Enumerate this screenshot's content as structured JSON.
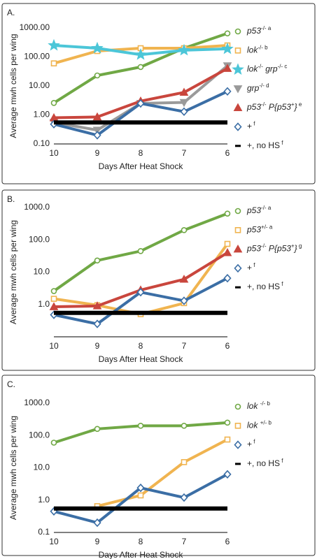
{
  "chart_data": [
    {
      "type": "line",
      "panel": "A.",
      "log_scale": true,
      "ylabel": "Average mwh cells per wing",
      "xlabel": "Days After Heat Shock",
      "categories": [
        "10",
        "9",
        "8",
        "7",
        "6"
      ],
      "ylim": [
        0.1,
        1000
      ],
      "yticks": [
        {
          "value": 1000,
          "label": "1000.00"
        },
        {
          "value": 100,
          "label": "100.00"
        },
        {
          "value": 10,
          "label": "10.00"
        },
        {
          "value": 1,
          "label": "1.00"
        },
        {
          "value": 0.1,
          "label": "0.10"
        }
      ],
      "series": [
        {
          "label": [
            {
              "text": "p53",
              "style": "italic"
            },
            {
              "text": "-/-",
              "style": "sup"
            },
            {
              "text": " a",
              "style": "sup"
            }
          ],
          "color": "#70a845",
          "marker": "circle",
          "values": [
            2.6,
            23,
            45,
            200,
            650
          ]
        },
        {
          "label": [
            {
              "text": "lok",
              "style": "italic"
            },
            {
              "text": "-/-",
              "style": "sup"
            },
            {
              "text": " b",
              "style": "sup"
            }
          ],
          "color": "#f0b450",
          "marker": "square",
          "values": [
            60,
            160,
            200,
            200,
            250
          ]
        },
        {
          "label": [
            {
              "text": "lok",
              "style": "italic"
            },
            {
              "text": "-/-",
              "style": "sup"
            },
            {
              "text": " grp",
              "style": "italic"
            },
            {
              "text": "-/-",
              "style": "sup"
            },
            {
              "text": " c",
              "style": "sup"
            }
          ],
          "color": "#4cc6d8",
          "marker": "star",
          "values": [
            250,
            200,
            120,
            170,
            190
          ]
        },
        {
          "label": [
            {
              "text": "grp",
              "style": "italic"
            },
            {
              "text": "-/-",
              "style": "sup"
            },
            {
              "text": " d",
              "style": "sup"
            }
          ],
          "color": "#9a9a9a",
          "marker": "triangle-down",
          "values": [
            0.55,
            0.3,
            2.5,
            2.7,
            50
          ]
        },
        {
          "label": [
            {
              "text": "p53",
              "style": "italic"
            },
            {
              "text": "-/-",
              "style": "sup"
            },
            {
              "text": " P{p53",
              "style": "italic"
            },
            {
              "text": "+",
              "style": "sup"
            },
            {
              "text": "}",
              "style": "italic"
            },
            {
              "text": " e",
              "style": "sup"
            }
          ],
          "color": "#c9463d",
          "marker": "triangle",
          "values": [
            0.8,
            0.85,
            3,
            6,
            40
          ]
        },
        {
          "label": [
            {
              "text": "+",
              "style": "plain"
            },
            {
              "text": " f",
              "style": "sup"
            }
          ],
          "color": "#3b6ea5",
          "marker": "diamond",
          "values": [
            0.48,
            0.2,
            2.5,
            1.3,
            6.5
          ]
        },
        {
          "label": [
            {
              "text": "+, no HS",
              "style": "plain"
            },
            {
              "text": " f",
              "style": "sup"
            }
          ],
          "color": "#000000",
          "marker": "none",
          "values": [
            0.55,
            0.55,
            0.55,
            0.55,
            0.55
          ]
        }
      ]
    },
    {
      "type": "line",
      "panel": "B.",
      "log_scale": true,
      "ylabel": "Average mwh cells per wing",
      "xlabel": "Days After Heat Shock",
      "categories": [
        "10",
        "9",
        "8",
        "7",
        "6"
      ],
      "ylim": [
        0.1,
        1000
      ],
      "yticks": [
        {
          "value": 1000,
          "label": "1000.0"
        },
        {
          "value": 100,
          "label": "100.0"
        },
        {
          "value": 10,
          "label": "10.0"
        },
        {
          "value": 1,
          "label": "1.0"
        }
      ],
      "series": [
        {
          "label": [
            {
              "text": "p53",
              "style": "italic"
            },
            {
              "text": "-/-",
              "style": "sup"
            },
            {
              "text": " a",
              "style": "sup"
            }
          ],
          "color": "#70a845",
          "marker": "circle",
          "values": [
            2.6,
            23,
            45,
            200,
            650
          ]
        },
        {
          "label": [
            {
              "text": "p53",
              "style": "italic"
            },
            {
              "text": "+/-",
              "style": "sup"
            },
            {
              "text": " a",
              "style": "sup"
            }
          ],
          "color": "#f0b450",
          "marker": "square",
          "values": [
            1.5,
            0.95,
            0.5,
            1.1,
            75
          ]
        },
        {
          "label": [
            {
              "text": "p53",
              "style": "italic"
            },
            {
              "text": "-/-",
              "style": "sup"
            },
            {
              "text": " P{p53",
              "style": "italic"
            },
            {
              "text": "+",
              "style": "sup"
            },
            {
              "text": "}",
              "style": "italic"
            },
            {
              "text": " g",
              "style": "sup"
            }
          ],
          "color": "#c9463d",
          "marker": "triangle",
          "values": [
            0.85,
            0.9,
            2.8,
            6,
            40
          ]
        },
        {
          "label": [
            {
              "text": "+",
              "style": "plain"
            },
            {
              "text": " f",
              "style": "sup"
            }
          ],
          "color": "#3b6ea5",
          "marker": "diamond",
          "values": [
            0.48,
            0.25,
            2.4,
            1.3,
            6.5
          ]
        },
        {
          "label": [
            {
              "text": "+, no HS",
              "style": "plain"
            },
            {
              "text": " f",
              "style": "sup"
            }
          ],
          "color": "#000000",
          "marker": "none",
          "values": [
            0.55,
            0.55,
            0.55,
            0.55,
            0.55
          ]
        }
      ]
    },
    {
      "type": "line",
      "panel": "C.",
      "log_scale": true,
      "ylabel": "Average mwh cells per wing",
      "xlabel": "Days After Heat Shock",
      "categories": [
        "10",
        "9",
        "8",
        "7",
        "6"
      ],
      "ylim": [
        0.1,
        1000
      ],
      "yticks": [
        {
          "value": 1000,
          "label": "1000.0"
        },
        {
          "value": 100,
          "label": "100.0"
        },
        {
          "value": 10,
          "label": "10.0"
        },
        {
          "value": 1,
          "label": "1.0"
        },
        {
          "value": 0.1,
          "label": "0.1"
        }
      ],
      "series": [
        {
          "label": [
            {
              "text": "lok ",
              "style": "italic"
            },
            {
              "text": "-/-",
              "style": "sup"
            },
            {
              "text": " b",
              "style": "sup"
            }
          ],
          "color": "#70a845",
          "marker": "circle",
          "values": [
            60,
            160,
            200,
            200,
            250
          ]
        },
        {
          "label": [
            {
              "text": "lok ",
              "style": "italic"
            },
            {
              "text": "+/-",
              "style": "sup"
            },
            {
              "text": " b",
              "style": "sup"
            }
          ],
          "color": "#f0b450",
          "marker": "square",
          "values": [
            null,
            0.65,
            1.4,
            15,
            75
          ]
        },
        {
          "label": [
            {
              "text": "+",
              "style": "plain"
            },
            {
              "text": " f",
              "style": "sup"
            }
          ],
          "color": "#3b6ea5",
          "marker": "diamond",
          "values": [
            0.45,
            0.2,
            2.4,
            1.2,
            6.3
          ]
        },
        {
          "label": [
            {
              "text": "+, no HS",
              "style": "plain"
            },
            {
              "text": " f",
              "style": "sup"
            }
          ],
          "color": "#000000",
          "marker": "none",
          "values": [
            0.55,
            0.55,
            0.55,
            0.55,
            0.55
          ]
        }
      ]
    }
  ]
}
